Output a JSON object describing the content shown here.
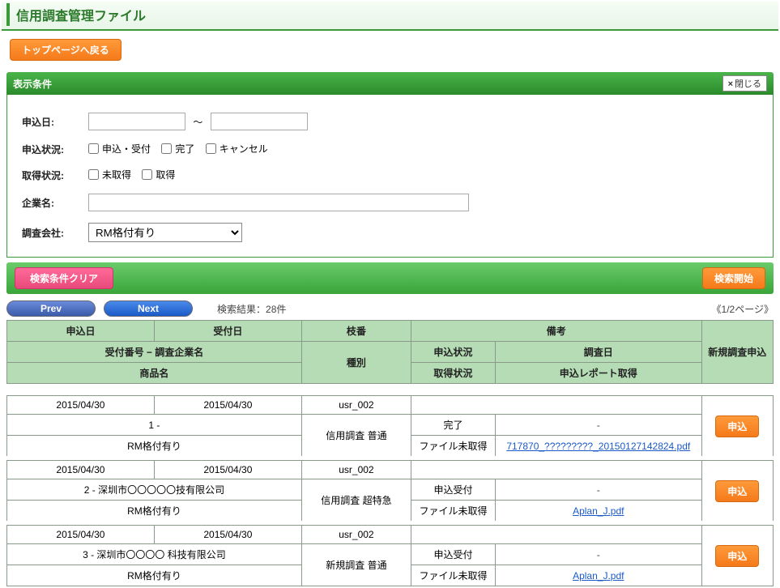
{
  "page_title": "信用調査管理ファイル",
  "top_back_btn": "トップページへ戻る",
  "panel": {
    "title": "表示条件",
    "close_label": "閉じる"
  },
  "cond": {
    "labels": {
      "apply_date": "申込日:",
      "apply_status": "申込状況:",
      "get_status": "取得状況:",
      "company": "企業名:",
      "agency": "調査会社:"
    },
    "date_sep": "〜",
    "apply_status_opts": [
      "申込・受付",
      "完了",
      "キャンセル"
    ],
    "get_status_opts": [
      "未取得",
      "取得"
    ],
    "agency_selected": "RM格付有り"
  },
  "buttons": {
    "clear": "検索条件クリア",
    "search": "検索開始",
    "prev": "Prev",
    "next": "Next"
  },
  "result": {
    "label_prefix": "検索結果：",
    "count": "28件",
    "page": "《1/2ページ》"
  },
  "thead": {
    "apply_date": "申込日",
    "recv_date": "受付日",
    "branch": "枝番",
    "remark": "備考",
    "recv_no_company": "受付番号 − 調査企業名",
    "type": "種別",
    "apply_status": "申込状況",
    "survey_date": "調査日",
    "new_apply": "新規調査申込",
    "product": "商品名",
    "get_status": "取得状況",
    "report": "申込レポート取得"
  },
  "rows": [
    {
      "apply_date": "2015/04/30",
      "recv_date": "2015/04/30",
      "branch": "usr_002",
      "remark": "",
      "company": "1 - ",
      "type": "信用調査 普通",
      "apply_status": "完了",
      "survey_date": "-",
      "product": "RM格付有り",
      "get_status": "ファイル未取得",
      "report": "717870_?????????_20150127142824.pdf",
      "report_link": true,
      "apply_btn": "申込"
    },
    {
      "apply_date": "2015/04/30",
      "recv_date": "2015/04/30",
      "branch": "usr_002",
      "remark": "",
      "company": "2 - 深圳市〇〇〇〇〇技有限公司",
      "type": "信用調査 超特急",
      "apply_status": "申込受付",
      "survey_date": "-",
      "product": "RM格付有り",
      "get_status": "ファイル未取得",
      "report": "Aplan_J.pdf",
      "report_link": true,
      "apply_btn": "申込"
    },
    {
      "apply_date": "2015/04/30",
      "recv_date": "2015/04/30",
      "branch": "usr_002",
      "remark": "",
      "company": "3 - 深圳市〇〇〇〇 科技有限公司",
      "type": "新規調査 普通",
      "apply_status": "申込受付",
      "survey_date": "-",
      "product": "RM格付有り",
      "get_status": "ファイル未取得",
      "report": "Aplan_J.pdf",
      "report_link": true,
      "apply_btn": "申込"
    }
  ],
  "colors": {
    "header_bg": "#b6dcb6",
    "panel_green": "#3aa53a",
    "orange": "#f57a1a",
    "pink": "#e84a7a",
    "link": "#1a5ac8"
  }
}
